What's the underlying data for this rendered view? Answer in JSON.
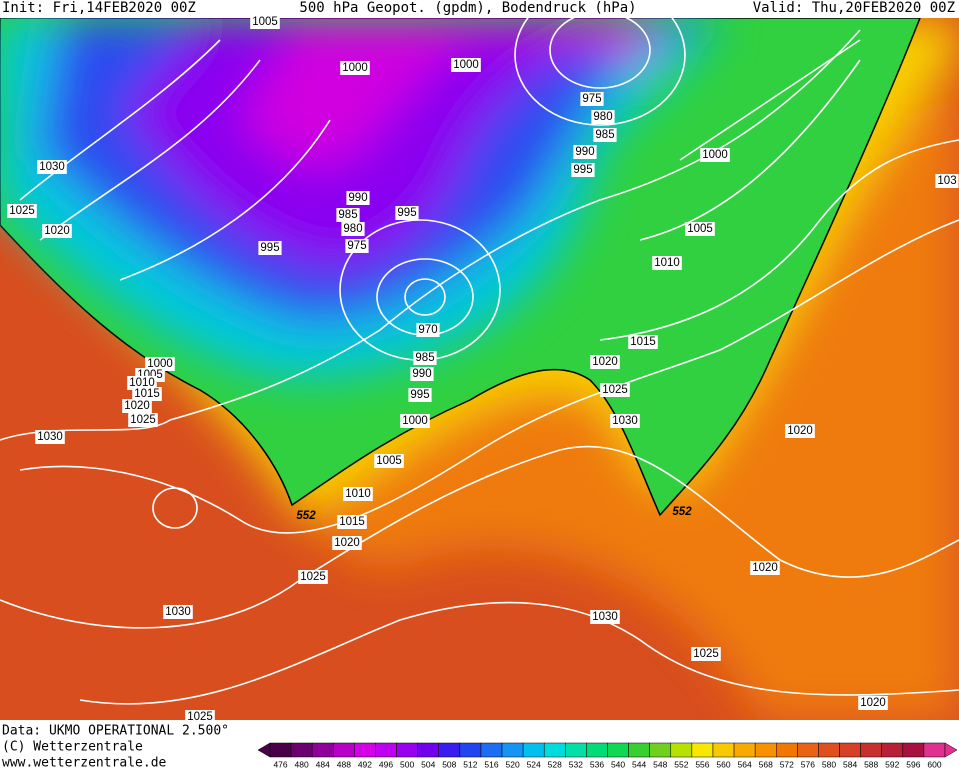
{
  "header": {
    "init": "Init: Fri,14FEB2020 00Z",
    "title": "500 hPa Geopot. (gpdm), Bodendruck (hPa)",
    "valid": "Valid: Thu,20FEB2020 00Z"
  },
  "isobar_labels": [
    "1005",
    "1000",
    "1000",
    "975",
    "980",
    "985",
    "990",
    "995",
    "1000",
    "1030",
    "1025",
    "1020",
    "990",
    "985",
    "995",
    "980",
    "975",
    "995",
    "1005",
    "1010",
    "103",
    "970",
    "1015",
    "1000",
    "1005",
    "1010",
    "1015",
    "1020",
    "1025",
    "985",
    "990",
    "1020",
    "1025",
    "995",
    "1030",
    "1000",
    "1020",
    "1030",
    "1005",
    "1010",
    "1015",
    "1020",
    "1025",
    "1020",
    "1030",
    "1030",
    "1025",
    "1020",
    "1025"
  ],
  "contour_labels": [
    "552",
    "552"
  ],
  "footer": {
    "data": "Data: UKMO OPERATIONAL 2.500°",
    "copyright": "(C) Wetterzentrale",
    "url": "www.wetterzentrale.de"
  },
  "legend": {
    "values": [
      476,
      480,
      484,
      488,
      492,
      496,
      500,
      504,
      508,
      512,
      516,
      520,
      524,
      528,
      532,
      536,
      540,
      544,
      548,
      552,
      556,
      560,
      564,
      568,
      572,
      576,
      580,
      584,
      588,
      592,
      596,
      600
    ],
    "colors": [
      "#4a0048",
      "#6c0070",
      "#90009a",
      "#b800c8",
      "#d400e6",
      "#c000f0",
      "#9a00f0",
      "#7000f0",
      "#3a1cf0",
      "#2044f0",
      "#1c6cf4",
      "#1494f4",
      "#00c0f0",
      "#00dcdc",
      "#00e0a8",
      "#00dc78",
      "#10d850",
      "#38d030",
      "#70d020",
      "#b8e000",
      "#f8e800",
      "#f8c800",
      "#f8aa00",
      "#f89000",
      "#f07800",
      "#e86414",
      "#e0501e",
      "#d84028",
      "#c83030",
      "#b82038",
      "#a81040",
      "#e03090"
    ]
  }
}
